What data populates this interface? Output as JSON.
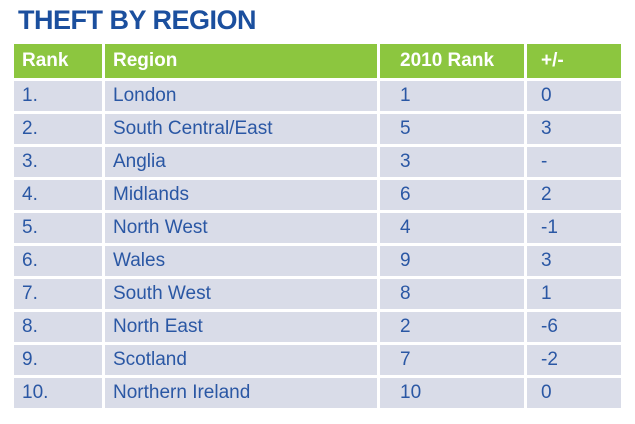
{
  "page": {
    "title": "THEFT BY REGION"
  },
  "colors": {
    "title_blue": "#1b4f9e",
    "header_green": "#8cc63f",
    "header_text": "#ffffff",
    "row_background": "#d9dce8",
    "cell_text_blue": "#2a57a4",
    "page_background": "#ffffff"
  },
  "chart_data": {
    "type": "table",
    "title": "THEFT BY REGION",
    "columns": [
      "Rank",
      "Region",
      "2010 Rank",
      "+/-"
    ],
    "rows": [
      [
        "1.",
        "London",
        "1",
        "0"
      ],
      [
        "2.",
        "South Central/East",
        "5",
        "3"
      ],
      [
        "3.",
        "Anglia",
        "3",
        "-"
      ],
      [
        "4.",
        "Midlands",
        "6",
        "2"
      ],
      [
        "5.",
        "North West",
        "4",
        "-1"
      ],
      [
        "6.",
        "Wales",
        "9",
        "3"
      ],
      [
        "7.",
        "South West",
        "8",
        "1"
      ],
      [
        "8.",
        "North East",
        "2",
        "-6"
      ],
      [
        "9.",
        "Scotland",
        "7",
        "-2"
      ],
      [
        "10.",
        "Northern Ireland",
        "10",
        "0"
      ]
    ]
  }
}
